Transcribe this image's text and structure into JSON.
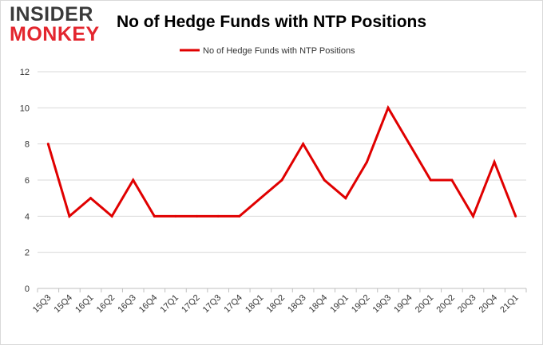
{
  "logo": {
    "line1": "INSIDER",
    "line2": "MONKEY"
  },
  "chart_data": {
    "type": "line",
    "title": "No of Hedge Funds with NTP Positions",
    "xlabel": "",
    "ylabel": "",
    "categories": [
      "15Q3",
      "15Q4",
      "16Q1",
      "16Q2",
      "16Q3",
      "16Q4",
      "17Q1",
      "17Q2",
      "17Q3",
      "17Q4",
      "18Q1",
      "18Q2",
      "18Q3",
      "18Q4",
      "19Q1",
      "19Q2",
      "19Q3",
      "19Q4",
      "20Q1",
      "20Q2",
      "20Q3",
      "20Q4",
      "21Q1"
    ],
    "series": [
      {
        "name": "No of Hedge Funds with NTP Positions",
        "color": "#e00000",
        "values": [
          8,
          4,
          5,
          4,
          6,
          4,
          4,
          4,
          4,
          4,
          5,
          6,
          8,
          6,
          5,
          7,
          10,
          8,
          6,
          6,
          4,
          7,
          4
        ]
      }
    ],
    "ylim": [
      0,
      12
    ],
    "yticks": [
      0,
      2,
      4,
      6,
      8,
      10,
      12
    ],
    "grid": true,
    "legend": "top-center"
  }
}
